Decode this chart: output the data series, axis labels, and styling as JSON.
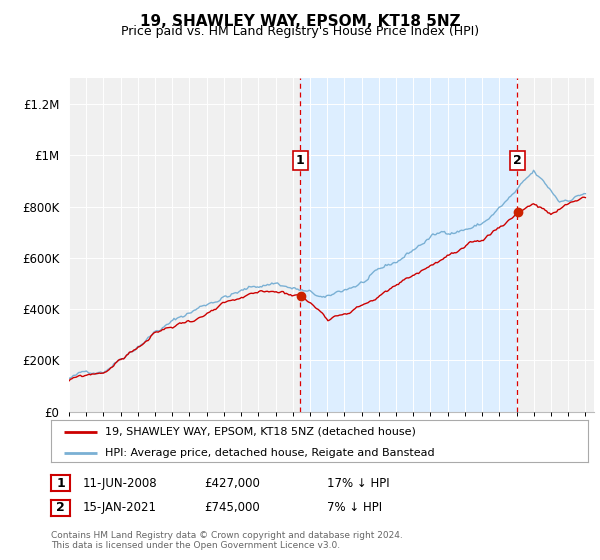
{
  "title": "19, SHAWLEY WAY, EPSOM, KT18 5NZ",
  "subtitle": "Price paid vs. HM Land Registry's House Price Index (HPI)",
  "ylabel_ticks": [
    "£0",
    "£200K",
    "£400K",
    "£600K",
    "£800K",
    "£1M",
    "£1.2M"
  ],
  "ytick_values": [
    0,
    200000,
    400000,
    600000,
    800000,
    1000000,
    1200000
  ],
  "ylim": [
    0,
    1300000
  ],
  "xlim_start": 1995.0,
  "xlim_end": 2025.5,
  "sale1_date": 2008.44,
  "sale1_price": 427000,
  "sale1_label": "1",
  "sale2_date": 2021.04,
  "sale2_price": 745000,
  "sale2_label": "2",
  "vline_color": "#dd0000",
  "hpi_line_color": "#7ab0d4",
  "price_line_color": "#cc0000",
  "shade_color": "#ddeeff",
  "legend_label1": "19, SHAWLEY WAY, EPSOM, KT18 5NZ (detached house)",
  "legend_label2": "HPI: Average price, detached house, Reigate and Banstead",
  "footnote": "Contains HM Land Registry data © Crown copyright and database right 2024.\nThis data is licensed under the Open Government Licence v3.0.",
  "background_color": "#ffffff",
  "plot_bg_color": "#f0f0f0"
}
